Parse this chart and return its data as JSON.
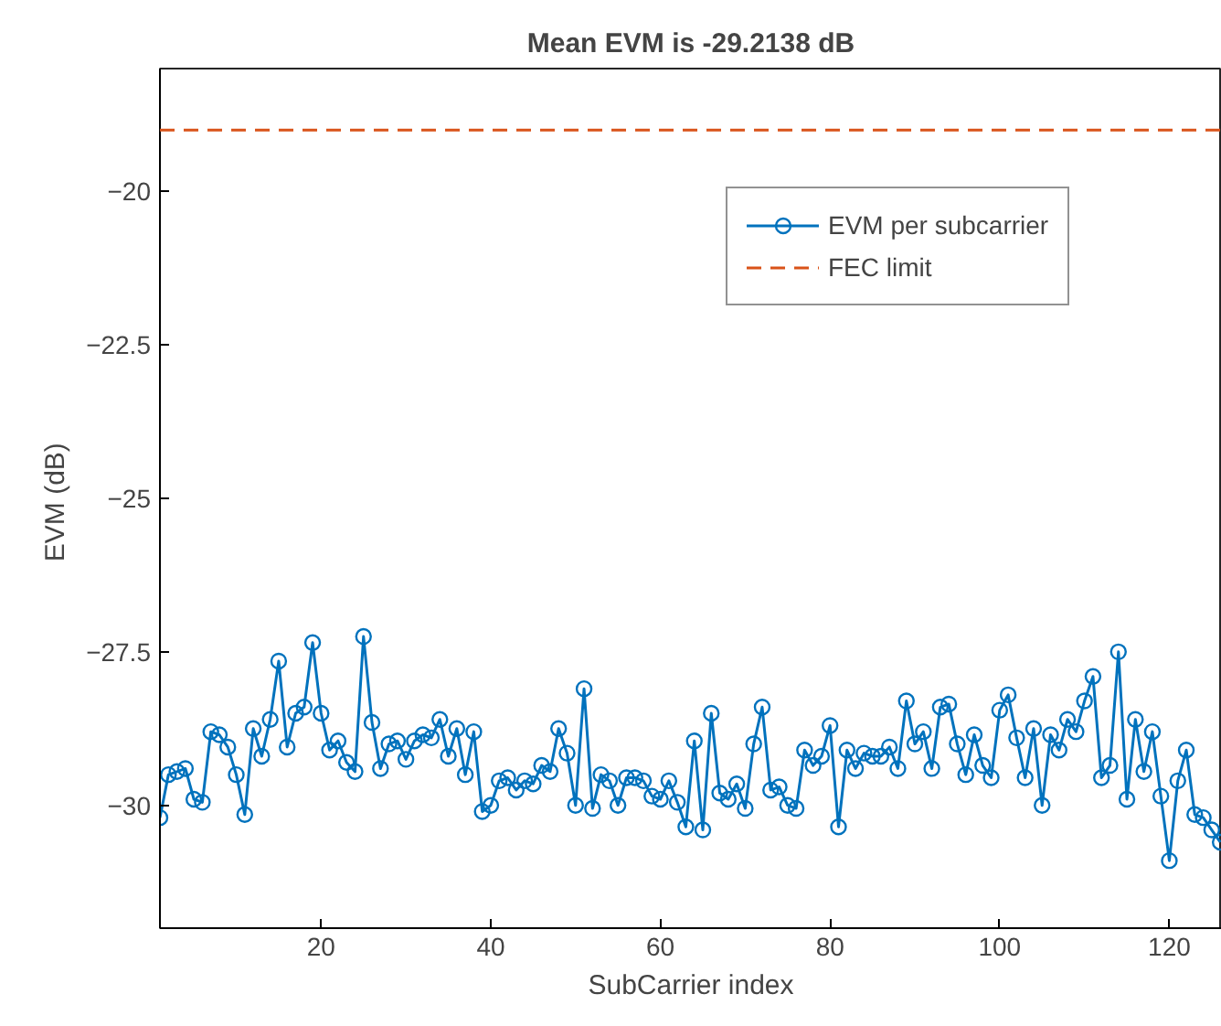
{
  "chart_data": {
    "type": "line",
    "title": "Mean EVM is -29.2138 dB",
    "xlabel": "SubCarrier index",
    "ylabel": "EVM  (dB)",
    "x": [
      1,
      2,
      3,
      4,
      5,
      6,
      7,
      8,
      9,
      10,
      11,
      12,
      13,
      14,
      15,
      16,
      17,
      18,
      19,
      20,
      21,
      22,
      23,
      24,
      25,
      26,
      27,
      28,
      29,
      30,
      31,
      32,
      33,
      34,
      35,
      36,
      37,
      38,
      39,
      40,
      41,
      42,
      43,
      44,
      45,
      46,
      47,
      48,
      49,
      50,
      51,
      52,
      53,
      54,
      55,
      56,
      57,
      58,
      59,
      60,
      61,
      62,
      63,
      64,
      65,
      66,
      67,
      68,
      69,
      70,
      71,
      72,
      73,
      74,
      75,
      76,
      77,
      78,
      79,
      80,
      81,
      82,
      83,
      84,
      85,
      86,
      87,
      88,
      89,
      90,
      91,
      92,
      93,
      94,
      95,
      96,
      97,
      98,
      99,
      100,
      101,
      102,
      103,
      104,
      105,
      106,
      107,
      108,
      109,
      110,
      111,
      112,
      113,
      114,
      115,
      116,
      117,
      118,
      119,
      120,
      121,
      122,
      123,
      124,
      125,
      126
    ],
    "series": [
      {
        "name": "EVM per subcarrier",
        "color": "#0072bd",
        "marker": "circle",
        "line_style": "solid",
        "values": [
          -30.2,
          -29.5,
          -29.45,
          -29.4,
          -29.9,
          -29.95,
          -28.8,
          -28.85,
          -29.05,
          -29.5,
          -30.15,
          -28.75,
          -29.2,
          -28.6,
          -27.65,
          -29.05,
          -28.5,
          -28.4,
          -27.35,
          -28.5,
          -29.1,
          -28.95,
          -29.3,
          -29.45,
          -27.25,
          -28.65,
          -29.4,
          -29.0,
          -28.95,
          -29.25,
          -28.95,
          -28.85,
          -28.9,
          -28.6,
          -29.2,
          -28.75,
          -29.5,
          -28.8,
          -30.1,
          -30.0,
          -29.6,
          -29.55,
          -29.75,
          -29.6,
          -29.65,
          -29.35,
          -29.45,
          -28.75,
          -29.15,
          -30.0,
          -28.1,
          -30.05,
          -29.5,
          -29.6,
          -30.0,
          -29.55,
          -29.55,
          -29.6,
          -29.85,
          -29.9,
          -29.6,
          -29.95,
          -30.35,
          -28.95,
          -30.4,
          -28.5,
          -29.8,
          -29.9,
          -29.65,
          -30.05,
          -29.0,
          -28.4,
          -29.75,
          -29.7,
          -30.0,
          -30.05,
          -29.1,
          -29.35,
          -29.2,
          -28.7,
          -30.35,
          -29.1,
          -29.4,
          -29.15,
          -29.2,
          -29.2,
          -29.05,
          -29.4,
          -28.3,
          -29.0,
          -28.8,
          -29.4,
          -28.4,
          -28.35,
          -29.0,
          -29.5,
          -28.85,
          -29.35,
          -29.55,
          -28.45,
          -28.2,
          -28.9,
          -29.55,
          -28.75,
          -30.0,
          -28.85,
          -29.1,
          -28.6,
          -28.8,
          -28.3,
          -27.9,
          -29.55,
          -29.35,
          -27.5,
          -29.9,
          -28.6,
          -29.45,
          -28.8,
          -29.85,
          -30.9,
          -29.6,
          -29.1,
          -30.15,
          -30.2,
          -30.4,
          -30.6
        ]
      }
    ],
    "ref_lines": [
      {
        "axis": "y",
        "value": -19,
        "label": "FEC limit",
        "color": "#d95319",
        "line_style": "dashed"
      }
    ],
    "xlim": [
      1,
      126.2
    ],
    "ylim": [
      -32,
      -18
    ],
    "xticks": [
      20,
      40,
      60,
      80,
      100,
      120
    ],
    "yticks": [
      -30,
      -27.5,
      -25,
      -22.5,
      -20
    ],
    "grid": false,
    "legend": "top right"
  }
}
